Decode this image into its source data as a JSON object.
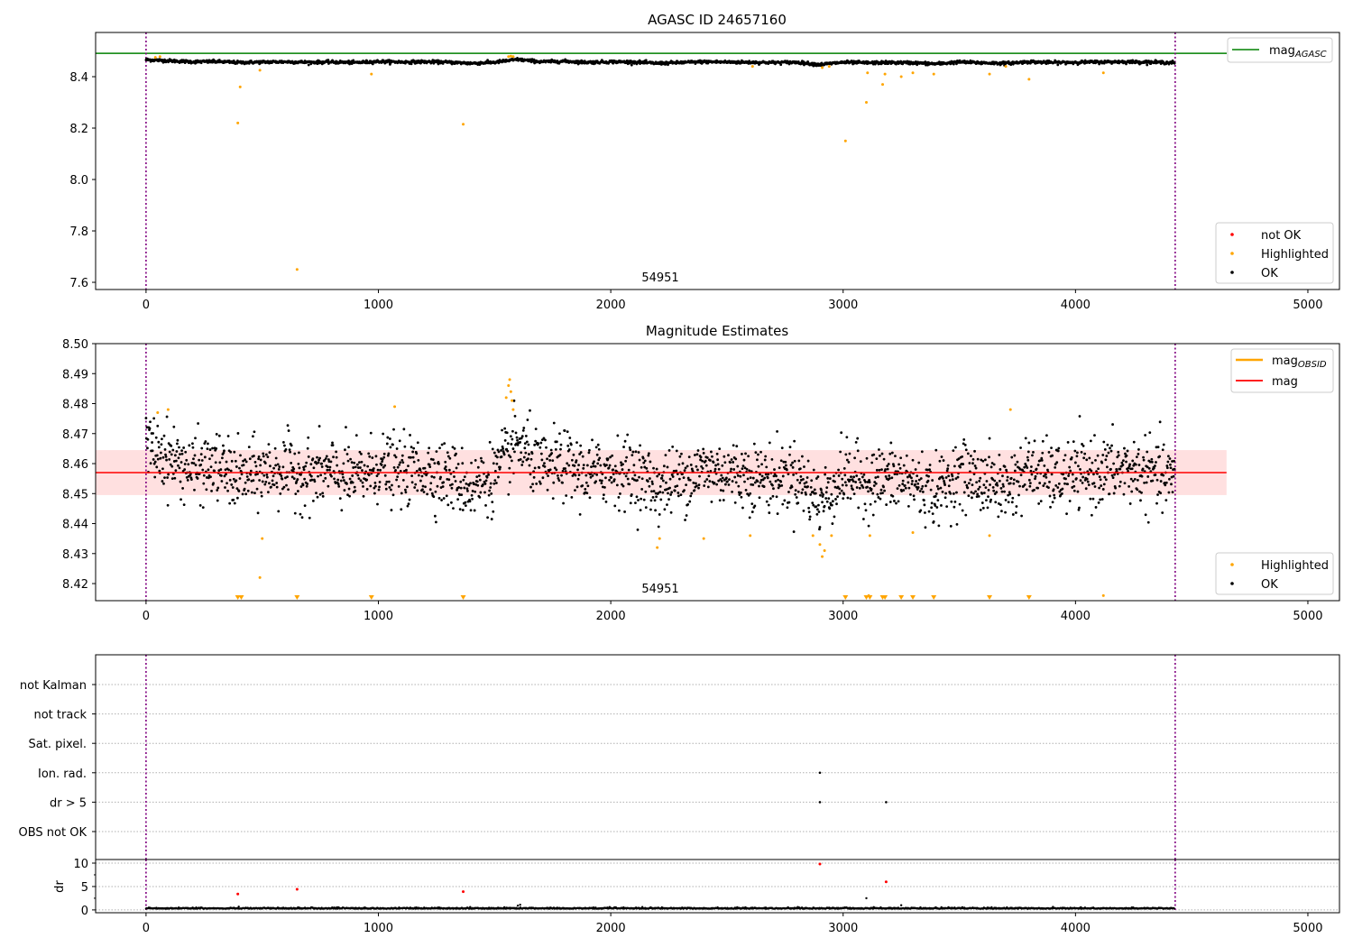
{
  "chart_data": [
    {
      "type": "scatter",
      "title": "AGASC ID 24657160",
      "xlim": [
        -217,
        5136
      ],
      "ylim": [
        7.572,
        8.572
      ],
      "xticks": [
        0,
        1000,
        2000,
        3000,
        4000,
        5000
      ],
      "yticks": [
        7.6,
        7.8,
        8.0,
        8.2,
        8.4
      ],
      "ytick_labels": [
        "7.6",
        "7.8",
        "8.0",
        "8.2",
        "8.4"
      ],
      "hline": {
        "name": "mag_AGASC",
        "value": 8.491,
        "color": "#008000"
      },
      "obs_boundaries": [
        0,
        4429
      ],
      "obs_label": {
        "text": "54951",
        "x": 2213
      },
      "legend_top": {
        "label": "mag",
        "sub": "AGASC"
      },
      "legend_bottom": [
        "not OK",
        "Highlighted",
        "OK"
      ],
      "highlighted": [
        [
          40,
          8.475
        ],
        [
          60,
          8.478
        ],
        [
          395,
          8.22
        ],
        [
          405,
          8.36
        ],
        [
          490,
          8.425
        ],
        [
          970,
          8.41
        ],
        [
          1365,
          8.215
        ],
        [
          650,
          7.65
        ],
        [
          1560,
          8.478
        ],
        [
          1570,
          8.48
        ],
        [
          1580,
          8.478
        ],
        [
          2610,
          8.44
        ],
        [
          2910,
          8.435
        ],
        [
          2940,
          8.44
        ],
        [
          3010,
          8.15
        ],
        [
          3100,
          8.3
        ],
        [
          3105,
          8.415
        ],
        [
          3170,
          8.37
        ],
        [
          3180,
          8.41
        ],
        [
          3250,
          8.4
        ],
        [
          3300,
          8.415
        ],
        [
          3390,
          8.41
        ],
        [
          3630,
          8.41
        ],
        [
          3700,
          8.44
        ],
        [
          3800,
          8.39
        ],
        [
          4120,
          8.415
        ]
      ]
    },
    {
      "type": "scatter",
      "title": "Magnitude Estimates",
      "xlim": [
        -217,
        5136
      ],
      "ylim": [
        8.4143,
        8.5
      ],
      "xticks": [
        0,
        1000,
        2000,
        3000,
        4000,
        5000
      ],
      "yticks": [
        8.42,
        8.43,
        8.44,
        8.45,
        8.46,
        8.47,
        8.48,
        8.49,
        8.5
      ],
      "ytick_labels": [
        "8.42",
        "8.43",
        "8.44",
        "8.45",
        "8.46",
        "8.47",
        "8.48",
        "8.49",
        "8.50"
      ],
      "mag": 8.457,
      "mag_band": [
        8.4495,
        8.4645
      ],
      "band_xmax": 4650,
      "legend_top": [
        {
          "label": "mag",
          "sub": "OBSID",
          "color": "#ffa500"
        },
        {
          "label": "mag",
          "color": "#ff0000"
        }
      ],
      "legend_bottom": [
        "Highlighted",
        "OK"
      ],
      "obs_label": {
        "text": "54951",
        "x": 2213
      },
      "n_points": 4427,
      "ok_trend": [
        8.466,
        8.462,
        8.458,
        8.459,
        8.455,
        8.457,
        8.458,
        8.456,
        8.457,
        8.455,
        8.459,
        8.457,
        8.458,
        8.456,
        8.452,
        8.456,
        8.467,
        8.458,
        8.46,
        8.456,
        8.458,
        8.457,
        8.452,
        8.455,
        8.458,
        8.457,
        8.456,
        8.455,
        8.456,
        8.447,
        8.456,
        8.454,
        8.455,
        8.454,
        8.45,
        8.457,
        8.454,
        8.452,
        8.458,
        8.455,
        8.456,
        8.457,
        8.458,
        8.457,
        8.455
      ],
      "ok_sd": 0.0055,
      "highlighted": [
        [
          50,
          8.477
        ],
        [
          95,
          8.478
        ],
        [
          500,
          8.435
        ],
        [
          490,
          8.422
        ],
        [
          1070,
          8.479
        ],
        [
          1550,
          8.482
        ],
        [
          1560,
          8.486
        ],
        [
          1565,
          8.488
        ],
        [
          1570,
          8.484
        ],
        [
          1575,
          8.481
        ],
        [
          1580,
          8.478
        ],
        [
          2200,
          8.432
        ],
        [
          2210,
          8.435
        ],
        [
          2400,
          8.435
        ],
        [
          2600,
          8.436
        ],
        [
          2870,
          8.436
        ],
        [
          2900,
          8.433
        ],
        [
          2910,
          8.429
        ],
        [
          2920,
          8.431
        ],
        [
          2950,
          8.436
        ],
        [
          3115,
          8.436
        ],
        [
          3300,
          8.437
        ],
        [
          3630,
          8.436
        ],
        [
          3720,
          8.478
        ],
        [
          4120,
          8.416
        ],
        [
          3110,
          8.416
        ]
      ],
      "clipped_below": [
        395,
        410,
        650,
        970,
        1365,
        3010,
        3100,
        3115,
        3170,
        3180,
        3250,
        3300,
        3390,
        3630,
        3800
      ]
    },
    {
      "type": "scatter",
      "title": "",
      "xlim": [
        -217,
        5136
      ],
      "categories": [
        "OBS not OK",
        "dr > 5",
        "Ion. rad.",
        "Sat. pixel.",
        "not track",
        "not Kalman"
      ],
      "flags": [
        [
          2900,
          "Ion. rad."
        ],
        [
          2900,
          "dr > 5"
        ],
        [
          3185,
          "dr > 5"
        ]
      ]
    },
    {
      "type": "scatter",
      "ylabel": "dr",
      "xlim": [
        -217,
        5136
      ],
      "ylim": [
        -0.6,
        10.77
      ],
      "xticks": [
        0,
        1000,
        2000,
        3000,
        4000,
        5000
      ],
      "yticks": [
        0,
        5,
        10
      ],
      "ytick_labels": [
        "0",
        "5",
        "10"
      ],
      "not_ok": [
        [
          395,
          3.4
        ],
        [
          650,
          4.4
        ],
        [
          1365,
          3.9
        ],
        [
          2900,
          9.8
        ],
        [
          3185,
          6.0
        ]
      ],
      "ok_extra": [
        [
          3100,
          2.5
        ],
        [
          3250,
          1.0
        ],
        [
          1610,
          1.1
        ],
        [
          1600,
          0.9
        ]
      ],
      "ok_level": 0.25
    }
  ],
  "colors": {
    "ok": "#000000",
    "highlighted": "#ffa500",
    "not_ok": "#ff0000",
    "agasc": "#008000",
    "boundary": "#800080",
    "band": "#ffcccc"
  }
}
